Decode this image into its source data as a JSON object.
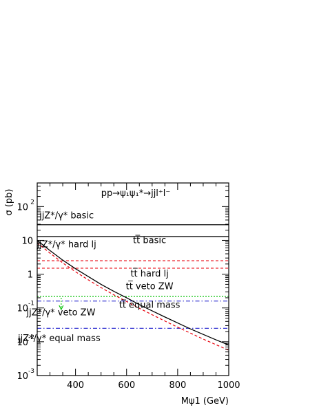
{
  "chart_data": {
    "type": "line",
    "title": "",
    "process_label": "pp→ψ₁ψ₁*→jjl⁺l⁻",
    "xlabel": "Mψ1 (GeV)",
    "ylabel": "σ (pb)",
    "xlim": [
      250,
      1000
    ],
    "ylim": [
      0.001,
      500
    ],
    "yscale": "log",
    "grid": false,
    "legend": "none",
    "x_ticks": [
      400,
      600,
      800,
      1000
    ],
    "y_ticks": [
      {
        "value": 0.001,
        "mantissa": "10",
        "exponent": "-3"
      },
      {
        "value": 0.01,
        "mantissa": "10",
        "exponent": "-2"
      },
      {
        "value": 0.1,
        "mantissa": "10",
        "exponent": "-1"
      },
      {
        "value": 1,
        "mantissa": "1",
        "exponent": ""
      },
      {
        "value": 10,
        "mantissa": "10",
        "exponent": ""
      },
      {
        "value": 100,
        "mantissa": "10",
        "exponent": "2"
      }
    ],
    "colors": {
      "black": "#000000",
      "red": "#e8000b",
      "green": "#00c000",
      "blue": "#1e1ecc"
    },
    "series": [
      {
        "id": "jjz-basic",
        "style": "solid",
        "color": "#000000",
        "x": [
          250,
          1000
        ],
        "y": [
          29,
          29
        ]
      },
      {
        "id": "tt-basic",
        "style": "solid",
        "color": "#000000",
        "x": [
          250,
          1000
        ],
        "y": [
          13,
          13
        ]
      },
      {
        "id": "tt-hard-lj-upper",
        "style": "dashed",
        "color": "#e8000b",
        "x": [
          250,
          1000
        ],
        "y": [
          2.5,
          2.5
        ]
      },
      {
        "id": "tt-hard-lj-lower",
        "style": "dashed",
        "color": "#e8000b",
        "x": [
          250,
          1000
        ],
        "y": [
          1.5,
          1.5
        ]
      },
      {
        "id": "tt-veto-zw",
        "style": "dotted",
        "color": "#00c000",
        "x": [
          250,
          1000
        ],
        "y": [
          0.22,
          0.22
        ]
      },
      {
        "id": "tt-equal-mass",
        "style": "dashdot",
        "color": "#1e1ecc",
        "x": [
          250,
          1000
        ],
        "y": [
          0.16,
          0.16
        ]
      },
      {
        "id": "jjz-equal-mass",
        "style": "dashdot",
        "color": "#1e1ecc",
        "x": [
          250,
          1000
        ],
        "y": [
          0.025,
          0.025
        ]
      },
      {
        "id": "signal",
        "style": "solid",
        "color": "#000000",
        "x": [
          250,
          300,
          350,
          400,
          450,
          500,
          550,
          600,
          650,
          700,
          750,
          800,
          850,
          900,
          950,
          1000
        ],
        "y": [
          10,
          5.0,
          2.6,
          1.45,
          0.85,
          0.5,
          0.31,
          0.2,
          0.125,
          0.082,
          0.054,
          0.036,
          0.024,
          0.0165,
          0.0114,
          0.008
        ]
      },
      {
        "id": "signal-hard-lj",
        "style": "dashed",
        "color": "#e8000b",
        "x": [
          250,
          300,
          350,
          400,
          450,
          500,
          550,
          600,
          650,
          700,
          750,
          800,
          850,
          900,
          950,
          1000
        ],
        "y": [
          8.5,
          4.2,
          2.15,
          1.18,
          0.68,
          0.4,
          0.245,
          0.155,
          0.098,
          0.063,
          0.041,
          0.027,
          0.018,
          0.012,
          0.0082,
          0.0056
        ]
      }
    ],
    "annotations": [
      {
        "id": "ann-jjz-basic",
        "text": "jjZ*/γ* basic",
        "x": 365,
        "y": 45
      },
      {
        "id": "ann-jjz-hard-lj",
        "text": "jjZ*/γ* hard lj",
        "x": 365,
        "y": 6.3
      },
      {
        "id": "ann-tt-basic",
        "text": "tt̅ basic",
        "x": 690,
        "y": 8.2
      },
      {
        "id": "ann-tt-hard-lj",
        "text": "tt̅ hard lj",
        "x": 690,
        "y": 0.85
      },
      {
        "id": "ann-tt-veto-zw",
        "text": "tt̅ veto ZW",
        "x": 690,
        "y": 0.36
      },
      {
        "id": "ann-tt-equal-mass",
        "text": "tt̅ equal mass",
        "x": 690,
        "y": 0.1
      },
      {
        "id": "ann-jjz-veto-zw",
        "text": "jjZ*/γ* veto ZW",
        "x": 343,
        "y": 0.06
      },
      {
        "id": "ann-jjz-equal-mass",
        "text": "jjZ*/γ* equal mass",
        "x": 336,
        "y": 0.0105
      }
    ],
    "arrow": {
      "x": 344,
      "y_start": 0.2,
      "y_end": 0.09,
      "color": "#00c000"
    }
  }
}
